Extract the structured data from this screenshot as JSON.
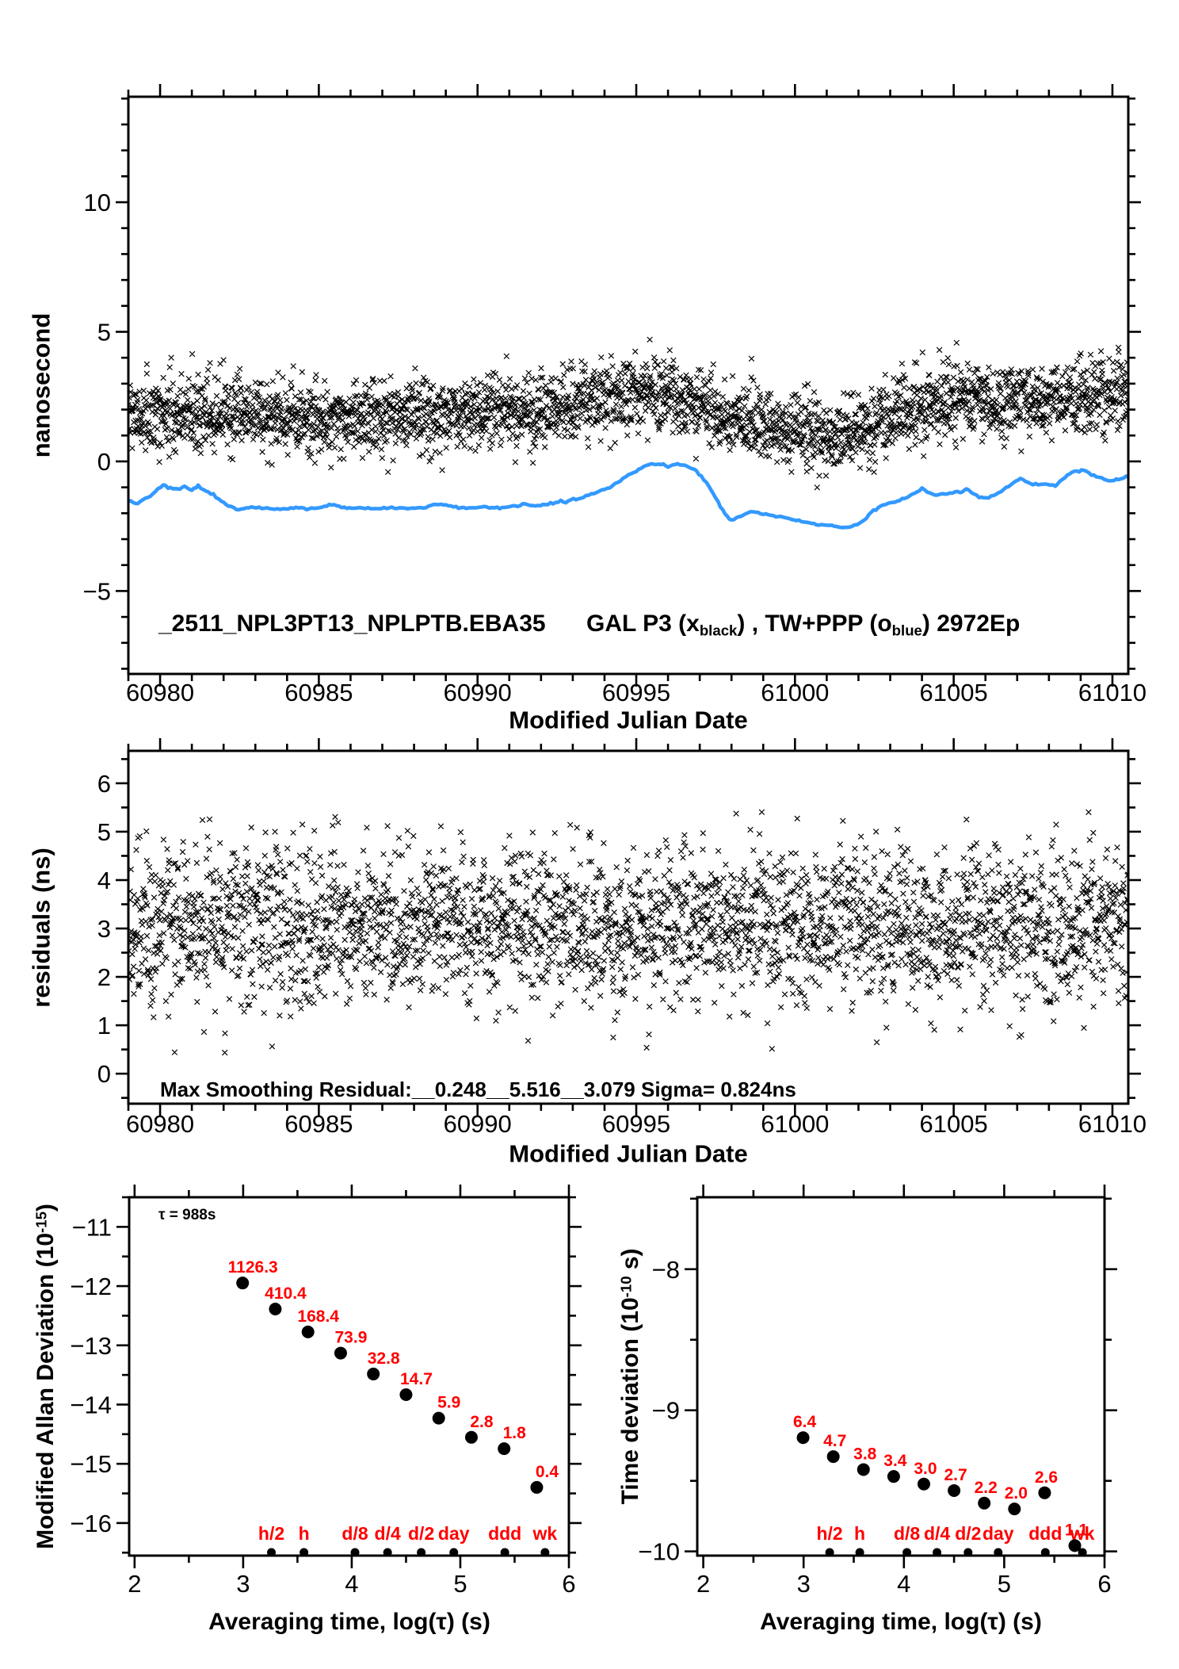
{
  "colors": {
    "ink": "#000000",
    "blue": "#3399ff",
    "red": "#ff0000",
    "background": "#ffffff"
  },
  "chart_data": [
    {
      "id": "phase_comparison",
      "type": "scatter",
      "xlabel": "Modified Julian Date",
      "ylabel": "nanosecond",
      "xlim": [
        60979.0,
        61010.5
      ],
      "ylim": [
        -8.2,
        14.07
      ],
      "xticks": [
        60980,
        60985,
        60990,
        60995,
        61000,
        61005,
        61010
      ],
      "xminor_step": 1,
      "yticks": [
        -5,
        0,
        5,
        10
      ],
      "yminor_step": 1,
      "annotation": {
        "id_text": "_2511_NPL3PT13_NPLPTB.EBA35",
        "series_prefix": "GAL P3 (x",
        "series_sub1": "black",
        "series_mid": ") ,  TW+PPP (o",
        "series_sub2": "blue",
        "series_suffix": ")  2972Ep"
      },
      "series": [
        {
          "name": "GAL P3",
          "marker": "x",
          "color": "#000000",
          "n": 2972,
          "sigma": 0.7,
          "seed": 20231,
          "trend": [
            [
              60979,
              1.75
            ],
            [
              60980,
              1.8
            ],
            [
              60981.5,
              1.9
            ],
            [
              60982.5,
              1.75
            ],
            [
              60983.5,
              1.7
            ],
            [
              60984.5,
              1.75
            ],
            [
              60985.5,
              1.65
            ],
            [
              60986.5,
              1.72
            ],
            [
              60987.5,
              1.8
            ],
            [
              60988.5,
              1.75
            ],
            [
              60989.5,
              1.8
            ],
            [
              60990.5,
              1.9
            ],
            [
              60991.5,
              1.95
            ],
            [
              60992.5,
              2.05
            ],
            [
              60993.5,
              2.3
            ],
            [
              60994.3,
              2.55
            ],
            [
              60995,
              2.65
            ],
            [
              60995.8,
              2.5
            ],
            [
              60996.5,
              2.3
            ],
            [
              60997.2,
              2.0
            ],
            [
              60997.8,
              1.7
            ],
            [
              60998.5,
              1.55
            ],
            [
              60999.2,
              1.5
            ],
            [
              61000,
              1.35
            ],
            [
              61000.6,
              1.1
            ],
            [
              61001.1,
              0.9
            ],
            [
              61001.6,
              0.95
            ],
            [
              61002.2,
              1.2
            ],
            [
              61002.8,
              1.5
            ],
            [
              61003.4,
              1.85
            ],
            [
              61004,
              2.15
            ],
            [
              61004.8,
              2.35
            ],
            [
              61005.6,
              2.4
            ],
            [
              61006.4,
              2.3
            ],
            [
              61007.2,
              2.35
            ],
            [
              61008,
              2.45
            ],
            [
              61008.8,
              2.5
            ],
            [
              61009.6,
              2.55
            ],
            [
              61010.5,
              2.7
            ]
          ]
        },
        {
          "name": "TW+PPP",
          "type": "line",
          "color": "#3399ff",
          "points": [
            [
              60979,
              -1.55
            ],
            [
              60979.3,
              -1.62
            ],
            [
              60979.6,
              -1.4
            ],
            [
              60980.1,
              -0.92
            ],
            [
              60980.4,
              -1.08
            ],
            [
              60980.7,
              -0.97
            ],
            [
              60981,
              -1.08
            ],
            [
              60981.2,
              -0.95
            ],
            [
              60981.6,
              -1.25
            ],
            [
              60982,
              -1.6
            ],
            [
              60982.4,
              -1.86
            ],
            [
              60982.8,
              -1.76
            ],
            [
              60983.2,
              -1.8
            ],
            [
              60983.7,
              -1.84
            ],
            [
              60984.2,
              -1.8
            ],
            [
              60984.7,
              -1.82
            ],
            [
              60985.1,
              -1.77
            ],
            [
              60985.4,
              -1.66
            ],
            [
              60985.8,
              -1.78
            ],
            [
              60986.3,
              -1.8
            ],
            [
              60986.8,
              -1.82
            ],
            [
              60987.3,
              -1.77
            ],
            [
              60987.8,
              -1.82
            ],
            [
              60988.3,
              -1.79
            ],
            [
              60988.7,
              -1.65
            ],
            [
              60989,
              -1.7
            ],
            [
              60989.4,
              -1.78
            ],
            [
              60989.8,
              -1.8
            ],
            [
              60990.2,
              -1.75
            ],
            [
              60990.7,
              -1.8
            ],
            [
              60991.1,
              -1.72
            ],
            [
              60991.5,
              -1.65
            ],
            [
              60991.9,
              -1.72
            ],
            [
              60992.3,
              -1.6
            ],
            [
              60992.7,
              -1.56
            ],
            [
              60993.1,
              -1.45
            ],
            [
              60993.5,
              -1.3
            ],
            [
              60994,
              -1.1
            ],
            [
              60994.5,
              -0.75
            ],
            [
              60995,
              -0.35
            ],
            [
              60995.4,
              -0.12
            ],
            [
              60995.7,
              -0.08
            ],
            [
              60996,
              -0.2
            ],
            [
              60996.3,
              -0.12
            ],
            [
              60996.6,
              -0.18
            ],
            [
              60996.9,
              -0.35
            ],
            [
              60997.2,
              -0.8
            ],
            [
              60997.5,
              -1.4
            ],
            [
              60997.8,
              -2.05
            ],
            [
              60998,
              -2.28
            ],
            [
              60998.3,
              -2.1
            ],
            [
              60998.6,
              -1.95
            ],
            [
              60999,
              -2.02
            ],
            [
              60999.4,
              -2.12
            ],
            [
              60999.8,
              -2.2
            ],
            [
              61000.2,
              -2.3
            ],
            [
              61000.6,
              -2.4
            ],
            [
              61001,
              -2.45
            ],
            [
              61001.4,
              -2.55
            ],
            [
              61001.8,
              -2.5
            ],
            [
              61002.1,
              -2.35
            ],
            [
              61002.4,
              -1.95
            ],
            [
              61002.7,
              -1.75
            ],
            [
              61003,
              -1.6
            ],
            [
              61003.3,
              -1.5
            ],
            [
              61003.7,
              -1.28
            ],
            [
              61004,
              -1.05
            ],
            [
              61004.4,
              -1.3
            ],
            [
              61004.8,
              -1.25
            ],
            [
              61005.2,
              -1.2
            ],
            [
              61005.4,
              -1.07
            ],
            [
              61005.8,
              -1.38
            ],
            [
              61006.1,
              -1.42
            ],
            [
              61006.5,
              -1.15
            ],
            [
              61006.8,
              -0.9
            ],
            [
              61007.1,
              -0.66
            ],
            [
              61007.5,
              -0.9
            ],
            [
              61007.9,
              -0.86
            ],
            [
              61008.2,
              -0.96
            ],
            [
              61008.5,
              -0.6
            ],
            [
              61008.8,
              -0.38
            ],
            [
              61009.1,
              -0.36
            ],
            [
              61009.5,
              -0.6
            ],
            [
              61009.9,
              -0.76
            ],
            [
              61010.2,
              -0.7
            ],
            [
              61010.5,
              -0.6
            ]
          ]
        }
      ]
    },
    {
      "id": "residuals",
      "type": "scatter",
      "xlabel": "Modified Julian Date",
      "ylabel": "residuals (ns)",
      "xlim": [
        60979.0,
        61010.5
      ],
      "ylim": [
        -0.62,
        6.67
      ],
      "xticks": [
        60980,
        60985,
        60990,
        60995,
        61000,
        61005,
        61010
      ],
      "xminor_step": 1,
      "yticks": [
        0,
        1,
        2,
        3,
        4,
        5,
        6
      ],
      "yminor_step": 0.5,
      "annotation": "Max Smoothing Residual:__0.248__5.516__3.079  Sigma= 0.824ns",
      "stats": {
        "min": 0.248,
        "max": 5.516,
        "mean": 3.079,
        "sigma_ns": 0.824
      },
      "series": [
        {
          "name": "residuals",
          "marker": "x",
          "color": "#000000",
          "n": 2972,
          "mean": 3.079,
          "sigma": 0.824,
          "clip_min": 0.248,
          "clip_max": 5.516,
          "seed": 77001
        }
      ]
    },
    {
      "id": "mdev",
      "type": "scatter",
      "xlabel": "Averaging time, log(τ) (s)",
      "ylabel_prefix": "Modified Allan Deviation (10",
      "ylabel_sup": "-15",
      "ylabel_suffix": ")",
      "annotation_tau": "τ = 988s",
      "xlim": [
        1.95,
        6.0
      ],
      "ylim": [
        -16.55,
        -10.5
      ],
      "xticks": [
        2,
        3,
        4,
        5,
        6
      ],
      "xminor_step": 0.5,
      "yticks": [
        -16,
        -15,
        -14,
        -13,
        -12,
        -11
      ],
      "yminor_step": 0.5,
      "points": [
        {
          "x": 2.995,
          "y": -11.948,
          "label": "1126.3"
        },
        {
          "x": 3.296,
          "y": -12.387,
          "label": "410.4"
        },
        {
          "x": 3.597,
          "y": -12.774,
          "label": "168.4"
        },
        {
          "x": 3.898,
          "y": -13.131,
          "label": "73.9"
        },
        {
          "x": 4.199,
          "y": -13.484,
          "label": "32.8"
        },
        {
          "x": 4.5,
          "y": -13.833,
          "label": "14.7"
        },
        {
          "x": 4.801,
          "y": -14.229,
          "label": "5.9"
        },
        {
          "x": 5.102,
          "y": -14.553,
          "label": "2.8"
        },
        {
          "x": 5.403,
          "y": -14.745,
          "label": "1.8"
        },
        {
          "x": 5.704,
          "y": -15.398,
          "label": "0.4"
        }
      ],
      "calendar_marks": [
        {
          "x": 3.26,
          "label": "h/2"
        },
        {
          "x": 3.56,
          "label": "h"
        },
        {
          "x": 4.03,
          "label": "d/8"
        },
        {
          "x": 4.33,
          "label": "d/4"
        },
        {
          "x": 4.64,
          "label": "d/2"
        },
        {
          "x": 4.94,
          "label": "day"
        },
        {
          "x": 5.41,
          "label": "ddd"
        },
        {
          "x": 5.78,
          "label": "wk"
        }
      ]
    },
    {
      "id": "tdev",
      "type": "scatter",
      "xlabel": "Averaging time, log(τ) (s)",
      "ylabel_prefix": "Time deviation (10",
      "ylabel_sup": "-10",
      "ylabel_suffix": " s)",
      "xlim": [
        1.94,
        6.0
      ],
      "ylim": [
        -10.03,
        -7.49
      ],
      "xticks": [
        2,
        3,
        4,
        5,
        6
      ],
      "xminor_step": 0.5,
      "yticks": [
        -10,
        -9,
        -8
      ],
      "yminor_step": 0.5,
      "points": [
        {
          "x": 2.995,
          "y": -9.194,
          "label": "6.4"
        },
        {
          "x": 3.296,
          "y": -9.328,
          "label": "4.7"
        },
        {
          "x": 3.597,
          "y": -9.42,
          "label": "3.8"
        },
        {
          "x": 3.898,
          "y": -9.469,
          "label": "3.4"
        },
        {
          "x": 4.199,
          "y": -9.523,
          "label": "3.0"
        },
        {
          "x": 4.5,
          "y": -9.569,
          "label": "2.7"
        },
        {
          "x": 4.801,
          "y": -9.658,
          "label": "2.2"
        },
        {
          "x": 5.102,
          "y": -9.699,
          "label": "2.0"
        },
        {
          "x": 5.403,
          "y": -9.585,
          "label": "2.6"
        },
        {
          "x": 5.704,
          "y": -9.959,
          "label": "1.1"
        }
      ],
      "calendar_marks": [
        {
          "x": 3.26,
          "label": "h/2"
        },
        {
          "x": 3.56,
          "label": "h"
        },
        {
          "x": 4.03,
          "label": "d/8"
        },
        {
          "x": 4.33,
          "label": "d/4"
        },
        {
          "x": 4.64,
          "label": "d/2"
        },
        {
          "x": 4.94,
          "label": "day"
        },
        {
          "x": 5.41,
          "label": "ddd"
        },
        {
          "x": 5.78,
          "label": "wk"
        }
      ]
    }
  ]
}
